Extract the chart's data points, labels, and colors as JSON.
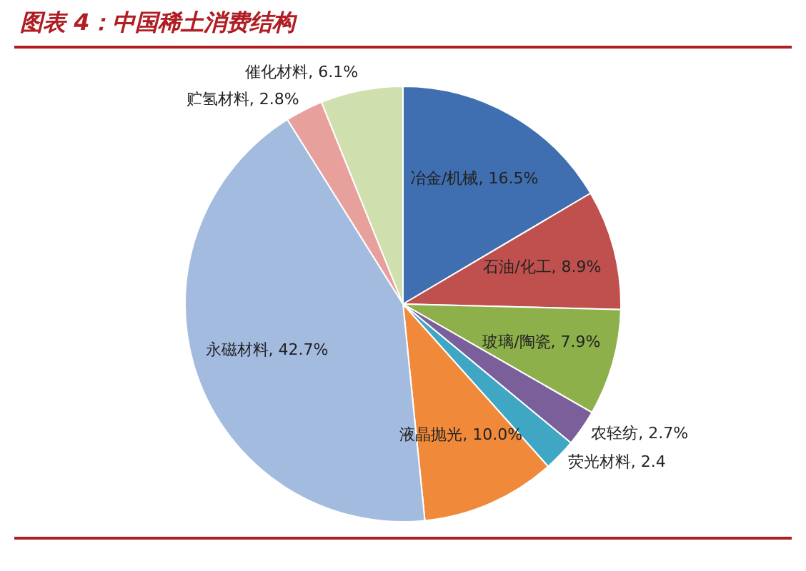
{
  "chart_data": {
    "type": "pie",
    "title": "图表 4：中国稀土消费结构",
    "categories": [
      "冶金/机械",
      "石油/化工",
      "玻璃/陶瓷",
      "农轻纺",
      "荧光材料",
      "液晶抛光",
      "永磁材料",
      "贮氢材料",
      "催化材料"
    ],
    "values": [
      16.5,
      8.9,
      7.9,
      2.7,
      2.4,
      10.0,
      42.7,
      2.8,
      6.1
    ],
    "value_labels": [
      "16.5%",
      "8.9%",
      "7.9%",
      "2.7%",
      "2.4",
      "10.0%",
      "42.7%",
      "2.8%",
      "6.1%"
    ],
    "colors": [
      "#3f6fb0",
      "#c0504d",
      "#8db04b",
      "#7a5f9a",
      "#3fa7c4",
      "#f08a3a",
      "#a4bbe0",
      "#e8a09d",
      "#cfdfae"
    ],
    "legend": false
  }
}
